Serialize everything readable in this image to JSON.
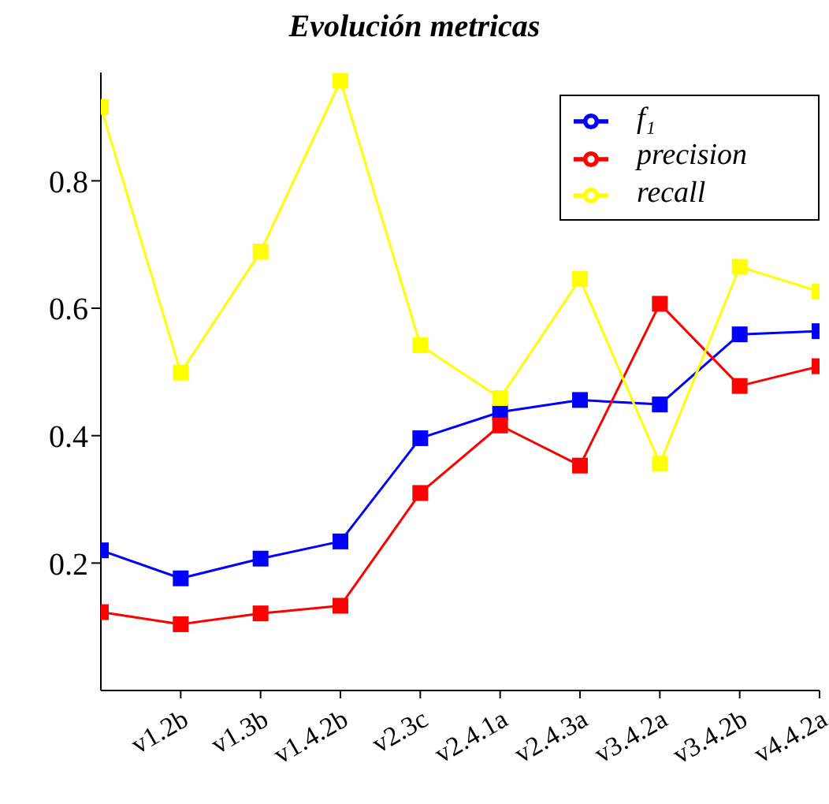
{
  "chart_data": {
    "type": "line",
    "title": "Evolución metricas",
    "categories": [
      null,
      "v1.2b",
      "v1.3b",
      "v1.4.2b",
      "v2.3c",
      "v2.4.1a",
      "v2.4.3a",
      "v3.4.2a",
      "v3.4.2b",
      "v4.4.2a"
    ],
    "series": [
      {
        "name": "f₁",
        "color": "#0000ff",
        "values": [
          0.22,
          0.176,
          0.207,
          0.234,
          0.396,
          0.437,
          0.456,
          0.449,
          0.559,
          0.564
        ]
      },
      {
        "name": "precision",
        "color": "#ff0000",
        "values": [
          0.123,
          0.104,
          0.121,
          0.133,
          0.31,
          0.416,
          0.353,
          0.607,
          0.478,
          0.509
        ]
      },
      {
        "name": "recall",
        "color": "#ffff00",
        "values": [
          0.916,
          0.499,
          0.689,
          0.957,
          0.542,
          0.459,
          0.646,
          0.356,
          0.665,
          0.626
        ]
      }
    ],
    "ylim": [
      0,
      0.97
    ],
    "yticks": [
      0.2,
      0.4,
      0.6,
      0.8
    ],
    "grid": false,
    "legend": "top right",
    "marker": "square",
    "line_style": "solid"
  }
}
